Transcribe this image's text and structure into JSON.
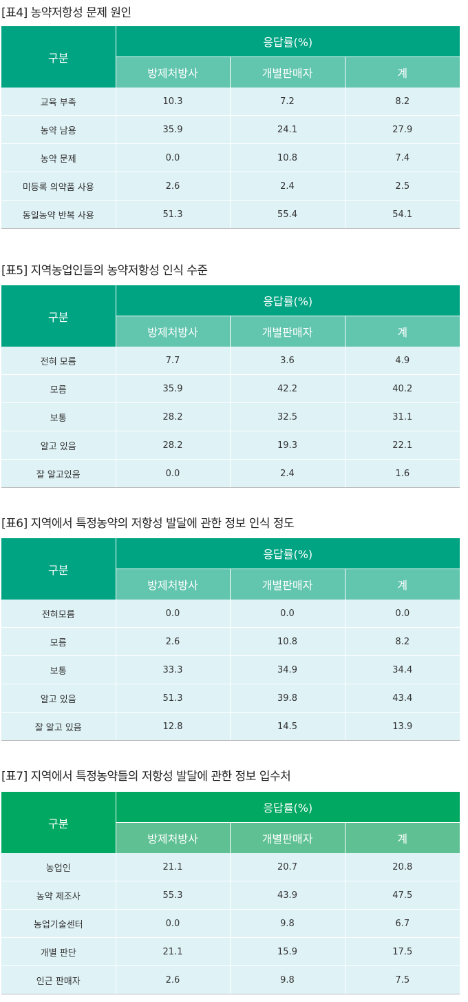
{
  "header": {
    "gubun": "구분",
    "response_rate": "응답률(%)",
    "col1": "방제처방사",
    "col2": "개별판매자",
    "col3": "계"
  },
  "tables": [
    {
      "title": "[표4] 농약저항성 문제 원인",
      "rows": [
        {
          "label": "교육 부족",
          "values": [
            "10.3",
            "7.2",
            "8.2"
          ]
        },
        {
          "label": "농약 남용",
          "values": [
            "35.9",
            "24.1",
            "27.9"
          ]
        },
        {
          "label": "농약 문제",
          "values": [
            "0.0",
            "10.8",
            "7.4"
          ]
        },
        {
          "label": "미등록 의약품 사용",
          "values": [
            "2.6",
            "2.4",
            "2.5"
          ]
        },
        {
          "label": "동일농약 반복 사용",
          "values": [
            "51.3",
            "55.4",
            "54.1"
          ]
        }
      ]
    },
    {
      "title": "[표5] 지역농업인들의 농약저항성 인식 수준",
      "rows": [
        {
          "label": "전혀 모름",
          "values": [
            "7.7",
            "3.6",
            "4.9"
          ]
        },
        {
          "label": "모름",
          "values": [
            "35.9",
            "42.2",
            "40.2"
          ]
        },
        {
          "label": "보통",
          "values": [
            "28.2",
            "32.5",
            "31.1"
          ]
        },
        {
          "label": "알고 있음",
          "values": [
            "28.2",
            "19.3",
            "22.1"
          ]
        },
        {
          "label": "잘 알고있음",
          "values": [
            "0.0",
            "2.4",
            "1.6"
          ]
        }
      ]
    },
    {
      "title": "[표6] 지역에서 특정농약의 저항성 발달에 관한 정보 인식 정도",
      "rows": [
        {
          "label": "전혀모름",
          "values": [
            "0.0",
            "0.0",
            "0.0"
          ]
        },
        {
          "label": "모름",
          "values": [
            "2.6",
            "10.8",
            "8.2"
          ]
        },
        {
          "label": "보통",
          "values": [
            "33.3",
            "34.9",
            "34.4"
          ]
        },
        {
          "label": "알고 있음",
          "values": [
            "51.3",
            "39.8",
            "43.4"
          ]
        },
        {
          "label": "잘 알고 있음",
          "values": [
            "12.8",
            "14.5",
            "13.9"
          ]
        }
      ]
    },
    {
      "title": "[표7] 지역에서 특정농약들의 저항성 발달에 관한 정보 입수처",
      "rows": [
        {
          "label": "농업인",
          "values": [
            "21.1",
            "20.7",
            "20.8"
          ]
        },
        {
          "label": "농약 제조사",
          "values": [
            "55.3",
            "43.9",
            "47.5"
          ]
        },
        {
          "label": "농업기술센터",
          "values": [
            "0.0",
            "9.8",
            "6.7"
          ]
        },
        {
          "label": "개별 판단",
          "values": [
            "21.1",
            "15.9",
            "17.5"
          ]
        },
        {
          "label": "인근 판매자",
          "values": [
            "2.6",
            "9.8",
            "7.5"
          ]
        }
      ]
    }
  ],
  "colors": {
    "header_green": "#00a482",
    "header_green_light": "#62c5ae",
    "table7_header": "#00a861",
    "table7_header_light": "#5fc193",
    "row_bg": "#dff2f6"
  }
}
